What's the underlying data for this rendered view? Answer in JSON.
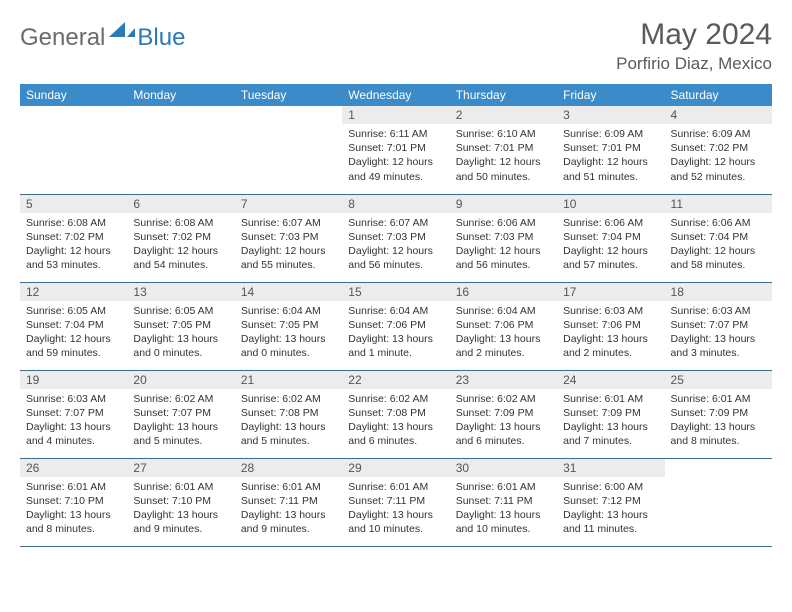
{
  "logo": {
    "gray": "General",
    "blue": "Blue"
  },
  "title": "May 2024",
  "location": "Porfirio Diaz, Mexico",
  "header_color": "#3b8bc8",
  "row_border_color": "#3b6a8f",
  "daynum_bg": "#ececec",
  "weekdays": [
    "Sunday",
    "Monday",
    "Tuesday",
    "Wednesday",
    "Thursday",
    "Friday",
    "Saturday"
  ],
  "weeks": [
    [
      null,
      null,
      null,
      {
        "n": "1",
        "sr": "6:11 AM",
        "ss": "7:01 PM",
        "dl": "12 hours and 49 minutes."
      },
      {
        "n": "2",
        "sr": "6:10 AM",
        "ss": "7:01 PM",
        "dl": "12 hours and 50 minutes."
      },
      {
        "n": "3",
        "sr": "6:09 AM",
        "ss": "7:01 PM",
        "dl": "12 hours and 51 minutes."
      },
      {
        "n": "4",
        "sr": "6:09 AM",
        "ss": "7:02 PM",
        "dl": "12 hours and 52 minutes."
      }
    ],
    [
      {
        "n": "5",
        "sr": "6:08 AM",
        "ss": "7:02 PM",
        "dl": "12 hours and 53 minutes."
      },
      {
        "n": "6",
        "sr": "6:08 AM",
        "ss": "7:02 PM",
        "dl": "12 hours and 54 minutes."
      },
      {
        "n": "7",
        "sr": "6:07 AM",
        "ss": "7:03 PM",
        "dl": "12 hours and 55 minutes."
      },
      {
        "n": "8",
        "sr": "6:07 AM",
        "ss": "7:03 PM",
        "dl": "12 hours and 56 minutes."
      },
      {
        "n": "9",
        "sr": "6:06 AM",
        "ss": "7:03 PM",
        "dl": "12 hours and 56 minutes."
      },
      {
        "n": "10",
        "sr": "6:06 AM",
        "ss": "7:04 PM",
        "dl": "12 hours and 57 minutes."
      },
      {
        "n": "11",
        "sr": "6:06 AM",
        "ss": "7:04 PM",
        "dl": "12 hours and 58 minutes."
      }
    ],
    [
      {
        "n": "12",
        "sr": "6:05 AM",
        "ss": "7:04 PM",
        "dl": "12 hours and 59 minutes."
      },
      {
        "n": "13",
        "sr": "6:05 AM",
        "ss": "7:05 PM",
        "dl": "13 hours and 0 minutes."
      },
      {
        "n": "14",
        "sr": "6:04 AM",
        "ss": "7:05 PM",
        "dl": "13 hours and 0 minutes."
      },
      {
        "n": "15",
        "sr": "6:04 AM",
        "ss": "7:06 PM",
        "dl": "13 hours and 1 minute."
      },
      {
        "n": "16",
        "sr": "6:04 AM",
        "ss": "7:06 PM",
        "dl": "13 hours and 2 minutes."
      },
      {
        "n": "17",
        "sr": "6:03 AM",
        "ss": "7:06 PM",
        "dl": "13 hours and 2 minutes."
      },
      {
        "n": "18",
        "sr": "6:03 AM",
        "ss": "7:07 PM",
        "dl": "13 hours and 3 minutes."
      }
    ],
    [
      {
        "n": "19",
        "sr": "6:03 AM",
        "ss": "7:07 PM",
        "dl": "13 hours and 4 minutes."
      },
      {
        "n": "20",
        "sr": "6:02 AM",
        "ss": "7:07 PM",
        "dl": "13 hours and 5 minutes."
      },
      {
        "n": "21",
        "sr": "6:02 AM",
        "ss": "7:08 PM",
        "dl": "13 hours and 5 minutes."
      },
      {
        "n": "22",
        "sr": "6:02 AM",
        "ss": "7:08 PM",
        "dl": "13 hours and 6 minutes."
      },
      {
        "n": "23",
        "sr": "6:02 AM",
        "ss": "7:09 PM",
        "dl": "13 hours and 6 minutes."
      },
      {
        "n": "24",
        "sr": "6:01 AM",
        "ss": "7:09 PM",
        "dl": "13 hours and 7 minutes."
      },
      {
        "n": "25",
        "sr": "6:01 AM",
        "ss": "7:09 PM",
        "dl": "13 hours and 8 minutes."
      }
    ],
    [
      {
        "n": "26",
        "sr": "6:01 AM",
        "ss": "7:10 PM",
        "dl": "13 hours and 8 minutes."
      },
      {
        "n": "27",
        "sr": "6:01 AM",
        "ss": "7:10 PM",
        "dl": "13 hours and 9 minutes."
      },
      {
        "n": "28",
        "sr": "6:01 AM",
        "ss": "7:11 PM",
        "dl": "13 hours and 9 minutes."
      },
      {
        "n": "29",
        "sr": "6:01 AM",
        "ss": "7:11 PM",
        "dl": "13 hours and 10 minutes."
      },
      {
        "n": "30",
        "sr": "6:01 AM",
        "ss": "7:11 PM",
        "dl": "13 hours and 10 minutes."
      },
      {
        "n": "31",
        "sr": "6:00 AM",
        "ss": "7:12 PM",
        "dl": "13 hours and 11 minutes."
      },
      null
    ]
  ],
  "labels": {
    "sunrise": "Sunrise:",
    "sunset": "Sunset:",
    "daylight": "Daylight:"
  }
}
